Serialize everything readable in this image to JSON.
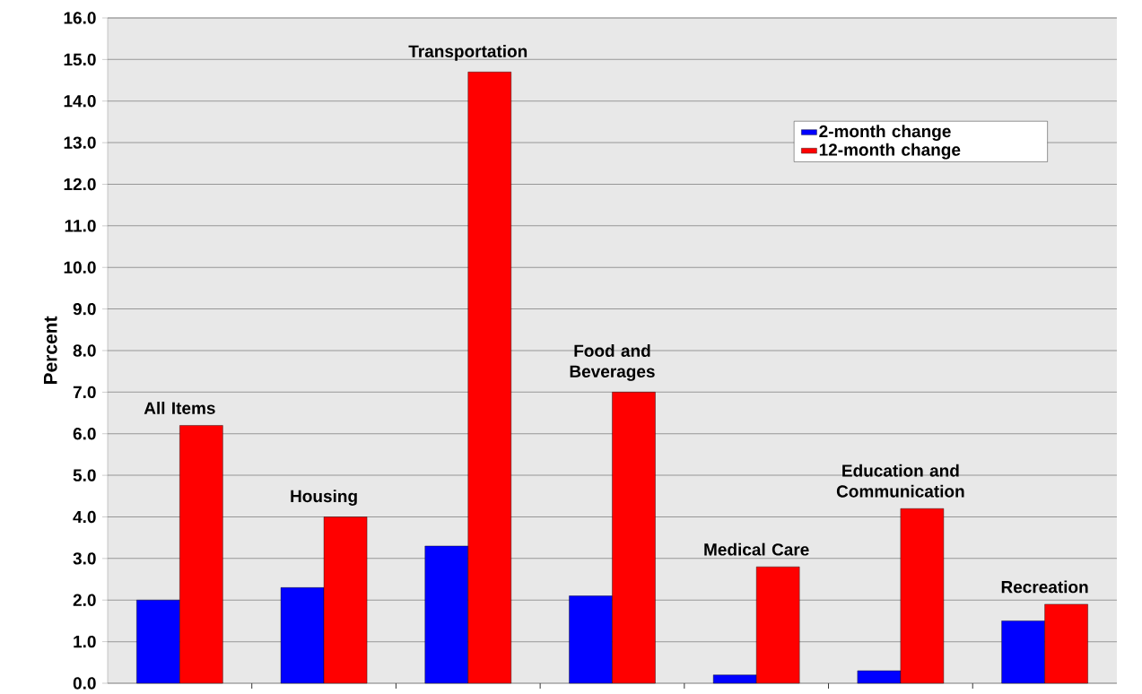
{
  "chart_data": {
    "type": "bar",
    "ylabel": "Percent",
    "categories": [
      "All Items",
      "Housing",
      "Transportation",
      "Food and Beverages",
      "Medical Care",
      "Education and Communication",
      "Recreation"
    ],
    "series": [
      {
        "name": "2-month change",
        "color": "#0000ff",
        "values": [
          2.0,
          2.3,
          3.3,
          2.1,
          0.2,
          0.3,
          1.5
        ]
      },
      {
        "name": "12-month change",
        "color": "#ff0000",
        "values": [
          6.2,
          4.0,
          14.7,
          7.0,
          2.8,
          4.2,
          1.9
        ]
      }
    ],
    "ylim": [
      0,
      16
    ],
    "yticks": [
      {
        "value": 0,
        "label": "0.0"
      },
      {
        "value": 1,
        "label": "1.0"
      },
      {
        "value": 2,
        "label": "2.0"
      },
      {
        "value": 3,
        "label": "3.0"
      },
      {
        "value": 4,
        "label": "4.0"
      },
      {
        "value": 5,
        "label": "5.0"
      },
      {
        "value": 6,
        "label": "6.0"
      },
      {
        "value": 7,
        "label": "7.0"
      },
      {
        "value": 8,
        "label": "8.0"
      },
      {
        "value": 9,
        "label": "9.0"
      },
      {
        "value": 10,
        "label": "10.0"
      },
      {
        "value": 11,
        "label": "11.0"
      },
      {
        "value": 12,
        "label": "12.0"
      },
      {
        "value": 13,
        "label": "13.0"
      },
      {
        "value": 14,
        "label": "14.0"
      },
      {
        "value": 15,
        "label": "15.0"
      },
      {
        "value": 16,
        "label": "16.0"
      }
    ],
    "grid": "y",
    "legend": "top right"
  }
}
